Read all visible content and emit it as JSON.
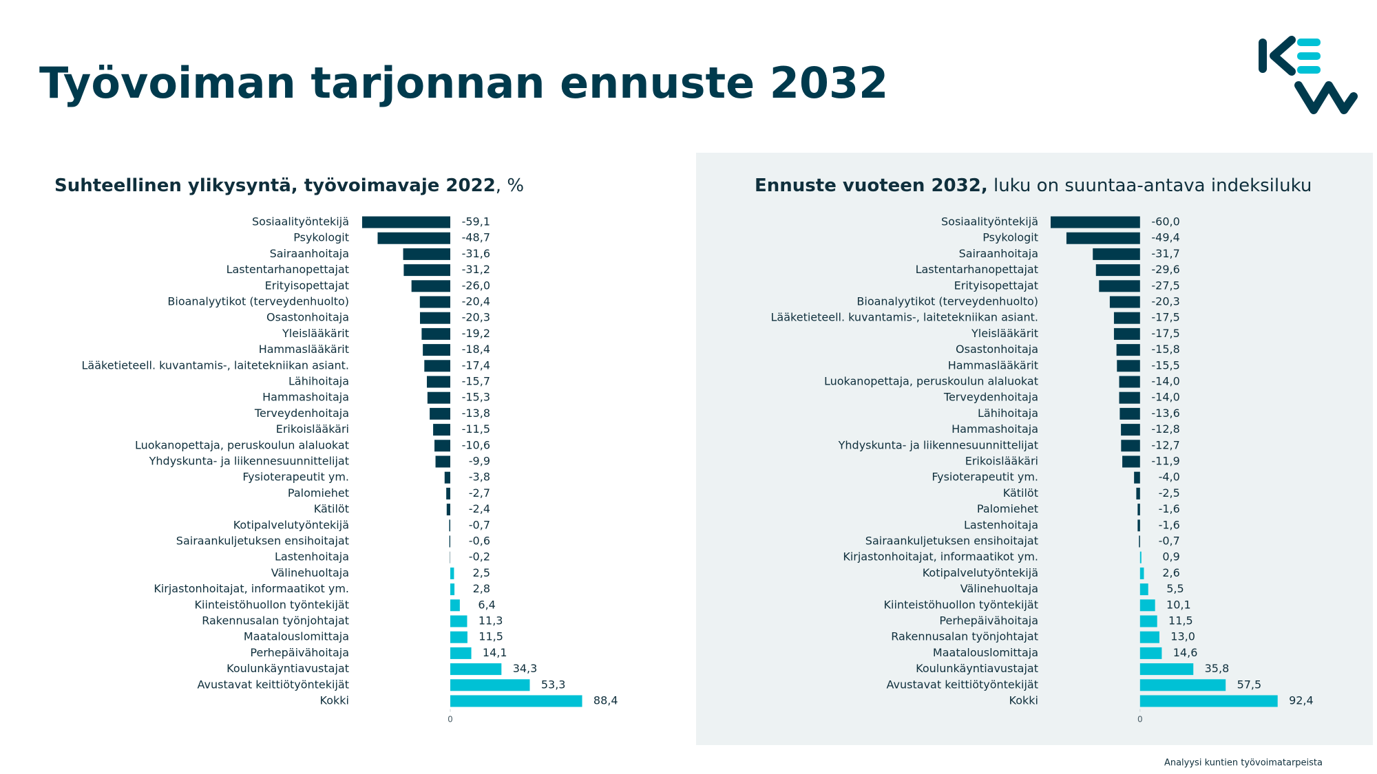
{
  "title": "Työvoiman tarjonnan ennuste 2032",
  "footer": "Analyysi kuntien työvoimatarpeista",
  "chart_data": [
    {
      "type": "bar",
      "orientation": "horizontal",
      "title_parts": [
        "Suhteellinen ylikysyntä, työvoimavaje 2022",
        ", %"
      ],
      "categories": [
        "Sosiaalityöntekijä",
        "Psykologit",
        "Sairaanhoitaja",
        "Lastentarhanopettajat",
        "Erityisopettajat",
        "Bioanalyytikot (terveydenhuolto)",
        "Osastonhoitaja",
        "Yleislääkärit",
        "Hammaslääkärit",
        "Lääketieteell. kuvantamis-, laitetekniikan asiant.",
        "Lähihoitaja",
        "Hammashoitaja",
        "Terveydenhoitaja",
        "Erikoislääkäri",
        "Luokanopettaja, peruskoulun alaluokat",
        "Yhdyskunta- ja liikennesuunnittelijat",
        "Fysioterapeutit ym.",
        "Palomiehet",
        "Kätilöt",
        "Kotipalvelutyöntekijä",
        "Sairaankuljetuksen ensihoitajat",
        "Lastenhoitaja",
        "Välinehuoltaja",
        "Kirjastonhoitajat, informaatikot ym.",
        "Kiinteistöhuollon työntekijät",
        "Rakennusalan työnjohtajat",
        "Maatalouslomittaja",
        "Perhepäivähoitaja",
        "Koulunkäyntiavustajat",
        "Avustavat keittiötyöntekijät",
        "Kokki"
      ],
      "values": [
        -59.1,
        -48.7,
        -31.6,
        -31.2,
        -26.0,
        -20.4,
        -20.3,
        -19.2,
        -18.4,
        -17.4,
        -15.7,
        -15.3,
        -13.8,
        -11.5,
        -10.6,
        -9.9,
        -3.8,
        -2.7,
        -2.4,
        -0.7,
        -0.6,
        -0.2,
        2.5,
        2.8,
        6.4,
        11.3,
        11.5,
        14.1,
        34.3,
        53.3,
        88.4
      ],
      "value_labels": [
        "-59,1",
        "-48,7",
        "-31,6",
        "-31,2",
        "-26,0",
        "-20,4",
        "-20,3",
        "-19,2",
        "-18,4",
        "-17,4",
        "-15,7",
        "-15,3",
        "-13,8",
        "-11,5",
        "-10,6",
        "-9,9",
        "-3,8",
        "-2,7",
        "-2,4",
        "-0,7",
        "-0,6",
        "-0,2",
        "2,5",
        "2,8",
        "6,4",
        "11,3",
        "11,5",
        "14,1",
        "34,3",
        "53,3",
        "88,4"
      ],
      "negative_color": "#003a4d",
      "positive_color": "#00c1d5",
      "xlim": [
        -60,
        90
      ],
      "xticks": [
        0
      ]
    },
    {
      "type": "bar",
      "orientation": "horizontal",
      "title_parts": [
        "Ennuste vuoteen 2032,",
        " luku on suuntaa-antava indeksiluku"
      ],
      "categories": [
        "Sosiaalityöntekijä",
        "Psykologit",
        "Sairaanhoitaja",
        "Lastentarhanopettajat",
        "Erityisopettajat",
        "Bioanalyytikot (terveydenhuolto)",
        "Lääketieteell. kuvantamis-, laitetekniikan asiant.",
        "Yleislääkärit",
        "Osastonhoitaja",
        "Hammaslääkärit",
        "Luokanopettaja, peruskoulun alaluokat",
        "Terveydenhoitaja",
        "Lähihoitaja",
        "Hammashoitaja",
        "Yhdyskunta- ja liikennesuunnittelijat",
        "Erikoislääkäri",
        "Fysioterapeutit ym.",
        "Kätilöt",
        "Palomiehet",
        "Lastenhoitaja",
        "Sairaankuljetuksen ensihoitajat",
        "Kirjastonhoitajat, informaatikot ym.",
        "Kotipalvelutyöntekijä",
        "Välinehuoltaja",
        "Kiinteistöhuollon työntekijät",
        "Perhepäivähoitaja",
        "Rakennusalan työnjohtajat",
        "Maatalouslomittaja",
        "Koulunkäyntiavustajat",
        "Avustavat keittiötyöntekijät",
        "Kokki"
      ],
      "values": [
        -60.0,
        -49.4,
        -31.7,
        -29.6,
        -27.5,
        -20.3,
        -17.5,
        -17.5,
        -15.8,
        -15.5,
        -14.0,
        -14.0,
        -13.6,
        -12.8,
        -12.7,
        -11.9,
        -4.0,
        -2.5,
        -1.6,
        -1.6,
        -0.7,
        0.9,
        2.6,
        5.5,
        10.1,
        11.5,
        13.0,
        14.6,
        35.8,
        57.5,
        92.4
      ],
      "value_labels": [
        "-60,0",
        "-49,4",
        "-31,7",
        "-29,6",
        "-27,5",
        "-20,3",
        "-17,5",
        "-17,5",
        "-15,8",
        "-15,5",
        "-14,0",
        "-14,0",
        "-13,6",
        "-12,8",
        "-12,7",
        "-11,9",
        "-4,0",
        "-2,5",
        "-1,6",
        "-1,6",
        "-0,7",
        "0,9",
        "2,6",
        "5,5",
        "10,1",
        "11,5",
        "13,0",
        "14,6",
        "35,8",
        "57,5",
        "92,4"
      ],
      "negative_color": "#003a4d",
      "positive_color": "#00c1d5",
      "xlim": [
        -60,
        93
      ],
      "xticks": [
        0
      ]
    }
  ]
}
